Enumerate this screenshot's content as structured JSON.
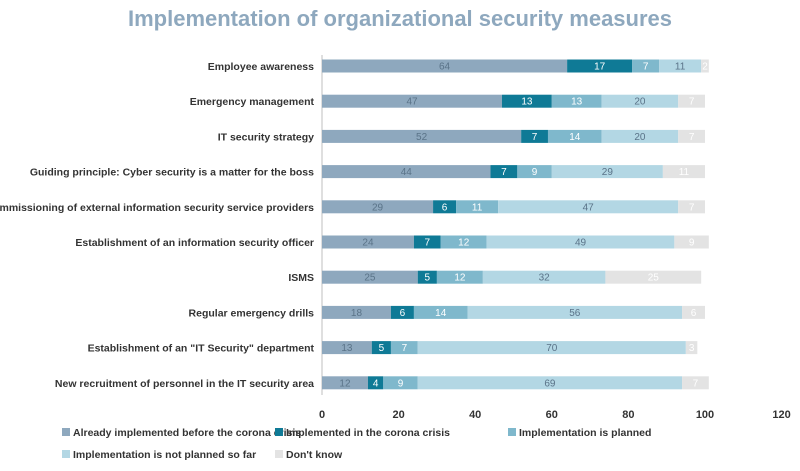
{
  "chart_data": {
    "type": "bar",
    "orientation": "horizontal-stacked",
    "title": "Implementation of organizational security measures",
    "categories": [
      "Employee awareness",
      "Emergency management",
      "IT security strategy",
      "Guiding principle: Cyber security is a matter for the boss",
      "Commissioning of external information security service providers",
      "Establishment of an information security officer",
      "ISMS",
      "Regular emergency drills",
      "Establishment of an \"IT Security\" department",
      "New recruitment of personnel in the IT security area"
    ],
    "series": [
      {
        "name": "Already implemented before the corona crisis",
        "color": "#8ea8be",
        "label_color": "#5a7388",
        "values": [
          64,
          47,
          52,
          44,
          29,
          24,
          25,
          18,
          13,
          12
        ]
      },
      {
        "name": "Implemented in the corona crisis",
        "color": "#0f7a96",
        "label_color": "#ffffff",
        "values": [
          17,
          13,
          7,
          7,
          6,
          7,
          5,
          6,
          5,
          4
        ]
      },
      {
        "name": "Implementation is planned",
        "color": "#7fb8cc",
        "label_color": "#ffffff",
        "values": [
          7,
          13,
          14,
          9,
          11,
          12,
          12,
          14,
          7,
          9
        ]
      },
      {
        "name": "Implementation is not planned so far",
        "color": "#b3d7e4",
        "label_color": "#5a7388",
        "values": [
          11,
          20,
          20,
          29,
          47,
          49,
          32,
          56,
          70,
          69
        ]
      },
      {
        "name": "Don't know",
        "color": "#e3e3e3",
        "label_color": "#ffffff",
        "values": [
          2,
          7,
          7,
          11,
          7,
          9,
          25,
          6,
          3,
          7
        ]
      }
    ],
    "xlim": [
      0,
      120
    ],
    "xticks": [
      "0",
      "20",
      "40",
      "60",
      "80",
      "100",
      "120"
    ],
    "grid": false,
    "legend_position": "bottom"
  }
}
